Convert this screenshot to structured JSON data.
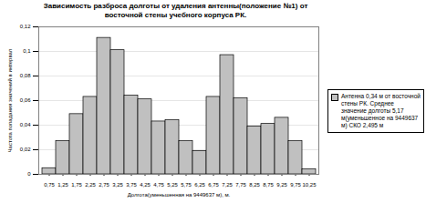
{
  "chart_data": {
    "type": "bar",
    "title": "Зависимость разброса долготы от удаления антенны(положение №1) от восточной стены учебного корпуса РК.",
    "x_label": "Долгота(уменьшенная на 9449637 м), м.",
    "y_label": "Частота попадания значений в интервал",
    "categories": [
      "0,75",
      "1,25",
      "1,75",
      "2,25",
      "2,75",
      "3,25",
      "3,75",
      "4,25",
      "4,75",
      "5,25",
      "5,75",
      "6,25",
      "6,75",
      "7,25",
      "7,75",
      "8,25",
      "8,75",
      "9,25",
      "9,75",
      "10,25"
    ],
    "series": [
      {
        "name": "Антенна 0,34 м от восточной стены РК. Среднее значение долготы 5,17 м(уменьшенное на 9449637 м) СКО 2,495 м",
        "color": "#c0c0c0",
        "values": [
          0.005,
          0.027,
          0.049,
          0.063,
          0.111,
          0.101,
          0.064,
          0.061,
          0.043,
          0.044,
          0.027,
          0.019,
          0.063,
          0.097,
          0.062,
          0.039,
          0.041,
          0.046,
          0.027,
          0.004
        ]
      }
    ],
    "ylim": [
      0,
      0.12
    ],
    "yticks": [
      0,
      {
        "value": 0.02,
        "label": "0,02"
      },
      {
        "value": 0.04,
        "label": "0,04"
      },
      {
        "value": 0.06,
        "label": "0,06"
      },
      {
        "value": 0.08,
        "label": "0,08"
      },
      {
        "value": 0.1,
        "label": "0,1"
      },
      {
        "value": 0.12,
        "label": "0,12"
      }
    ],
    "grid": true,
    "legend": "right"
  }
}
